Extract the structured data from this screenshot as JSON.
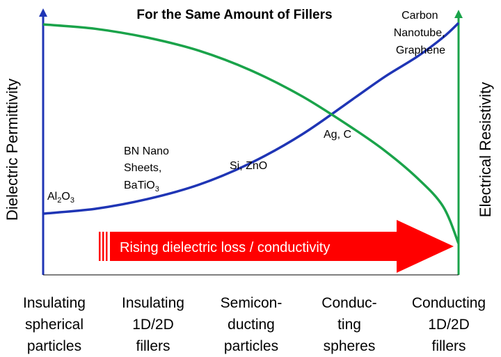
{
  "chart_data": {
    "type": "line",
    "title": "For the Same Amount of Fillers",
    "ylabel_left": "Dielectric Permittivity",
    "ylabel_right": "Electrical Resistivity",
    "categories": [
      "Insulating\nspherical\nparticles",
      "Insulating\n1D/2D\nfillers",
      "Semicon-\nducting\nparticles",
      "Conduc-\nting\nspheres",
      "Conducting\n1D/2D\nfillers"
    ],
    "series": [
      {
        "color": "#1f35b5",
        "axis": "left",
        "x": [
          0,
          0.5,
          1,
          1.5,
          2,
          2.5,
          3,
          3.3,
          3.6,
          3.85,
          4
        ],
        "y": [
          0.21,
          0.23,
          0.27,
          0.33,
          0.42,
          0.54,
          0.69,
          0.78,
          0.86,
          0.94,
          1.0
        ]
      },
      {
        "color": "#1aa34a",
        "axis": "right",
        "x": [
          0,
          0.5,
          1,
          1.5,
          2,
          2.5,
          3,
          3.3,
          3.6,
          3.85,
          4
        ],
        "y": [
          1.0,
          0.98,
          0.94,
          0.88,
          0.79,
          0.67,
          0.52,
          0.42,
          0.3,
          0.17,
          0.0
        ]
      }
    ],
    "annotations": [
      {
        "text": "Al",
        "sub": "2",
        "text2": "O",
        "sub2": "3"
      },
      {
        "line1": "BN Nano",
        "line2": "Sheets,",
        "line3": "BaTiO",
        "sub3": "3"
      },
      {
        "text": "Si, ZnO"
      },
      {
        "text": "Ag, C"
      },
      {
        "line1": "Carbon",
        "line2": "Nanotube,",
        "line3": "Graphene"
      }
    ],
    "arrow_label": "Rising dielectric loss / conductivity",
    "arrow_color": "#ff0000",
    "left_axis_color": "#1f35b5",
    "right_axis_color": "#1aa34a",
    "ylim": [
      0,
      1
    ],
    "grid": false
  }
}
